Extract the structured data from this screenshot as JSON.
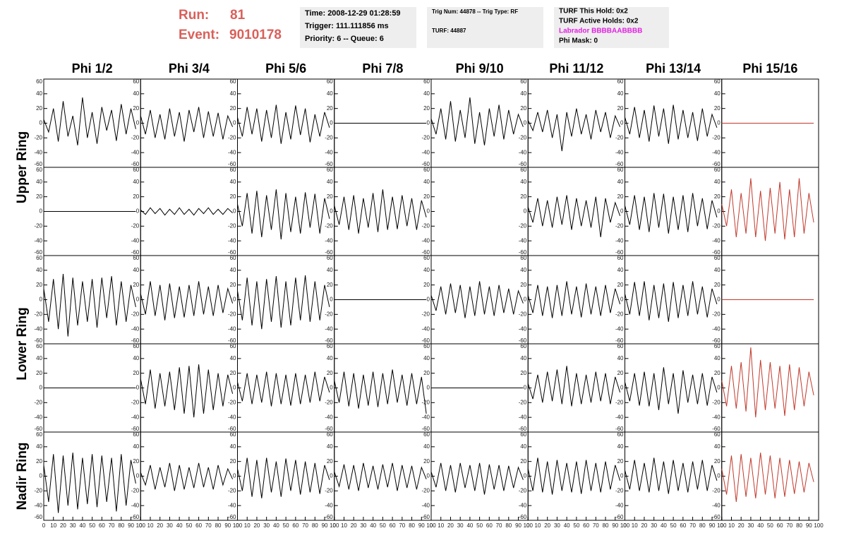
{
  "header": {
    "run_label": "Run:",
    "run": "81",
    "event_label": "Event:",
    "event": "9010178"
  },
  "info_boxes": [
    {
      "lines": [
        "Time: 2008-12-29 01:28:59",
        "Trigger: 111.111856 ms",
        "Priority: 6 -- Queue: 6"
      ]
    },
    {
      "lines": [
        "Trig Num: 44878 -- Trig Type: RF",
        "TURF: 44887"
      ]
    },
    {
      "lines": [
        "TURF This Hold: 0x2",
        "TURF Active Holds: 0x2",
        "Labrador BBBBAABBBB",
        "Phi Mask: 0"
      ]
    }
  ],
  "chart_data": {
    "type": "line",
    "columns": [
      "Phi 1/2",
      "Phi 3/4",
      "Phi 5/6",
      "Phi 7/8",
      "Phi 9/10",
      "Phi 11/12",
      "Phi 13/14",
      "Phi 15/16"
    ],
    "rings": [
      "Upper Ring",
      "Lower Ring",
      "Nadir Ring"
    ],
    "xlim": [
      0,
      100
    ],
    "xticks": [
      0,
      10,
      20,
      30,
      40,
      50,
      60,
      70,
      80,
      90,
      100
    ],
    "ylim": [
      -60,
      60
    ],
    "yticks": [
      -60,
      -40,
      -20,
      0,
      20,
      40,
      60
    ],
    "x": [
      0,
      5,
      10,
      15,
      20,
      25,
      30,
      35,
      40,
      45,
      50,
      55,
      60,
      65,
      70,
      75,
      80,
      85,
      90,
      95
    ],
    "panels": [
      [
        {
          "color": "#000000",
          "values": [
            5,
            -12,
            20,
            -25,
            30,
            -18,
            10,
            -30,
            35,
            -20,
            15,
            -28,
            22,
            -10,
            18,
            -24,
            26,
            -15,
            20,
            -8
          ]
        },
        {
          "color": "#000000",
          "values": [
            10,
            -15,
            18,
            -20,
            12,
            -22,
            20,
            -18,
            15,
            -25,
            18,
            -12,
            22,
            -20,
            16,
            -18,
            14,
            -22,
            10,
            -5
          ]
        },
        {
          "color": "#000000",
          "values": [
            8,
            -18,
            22,
            -15,
            20,
            -25,
            18,
            -20,
            25,
            -28,
            15,
            -22,
            24,
            -16,
            20,
            -26,
            12,
            -18,
            15,
            -6
          ]
        },
        {
          "color": "#000000",
          "values": [
            0,
            0,
            0,
            0,
            0,
            0,
            0,
            0,
            0,
            0,
            0,
            0,
            0,
            0,
            0,
            0,
            0,
            0,
            0,
            0
          ]
        },
        {
          "color": "#000000",
          "values": [
            6,
            -15,
            20,
            -22,
            30,
            -25,
            18,
            -20,
            35,
            -28,
            15,
            -30,
            20,
            -18,
            25,
            -22,
            18,
            -15,
            12,
            -5
          ]
        },
        {
          "color": "#000000",
          "values": [
            4,
            -10,
            15,
            -12,
            18,
            -20,
            12,
            -38,
            15,
            -18,
            20,
            -15,
            12,
            -22,
            18,
            -12,
            15,
            -20,
            10,
            -5
          ]
        },
        {
          "color": "#000000",
          "values": [
            8,
            -15,
            22,
            -20,
            18,
            -25,
            24,
            -18,
            20,
            -28,
            25,
            -22,
            18,
            -20,
            15,
            -24,
            20,
            -18,
            12,
            -6
          ]
        },
        {
          "color": "#c0392b",
          "values": [
            0,
            0,
            0,
            0,
            0,
            0,
            0,
            0,
            0,
            0,
            0,
            0,
            0,
            0,
            0,
            0,
            0,
            0,
            0,
            0
          ]
        }
      ],
      [
        {
          "color": "#000000",
          "values": [
            0,
            0,
            0,
            0,
            0,
            0,
            0,
            0,
            0,
            0,
            0,
            0,
            0,
            0,
            0,
            0,
            0,
            0,
            0,
            0
          ]
        },
        {
          "color": "#000000",
          "values": [
            2,
            -4,
            5,
            -3,
            4,
            -5,
            3,
            -4,
            5,
            -4,
            3,
            -5,
            4,
            -3,
            5,
            -4,
            3,
            -4,
            4,
            -2
          ]
        },
        {
          "color": "#000000",
          "values": [
            10,
            -20,
            25,
            -30,
            28,
            -35,
            22,
            -25,
            30,
            -38,
            25,
            -28,
            20,
            -30,
            26,
            -22,
            24,
            -30,
            18,
            -10
          ]
        },
        {
          "color": "#000000",
          "values": [
            8,
            -18,
            20,
            -25,
            22,
            -30,
            18,
            -22,
            25,
            -28,
            30,
            -25,
            20,
            -24,
            22,
            -20,
            18,
            -25,
            15,
            -8
          ]
        },
        null,
        {
          "color": "#000000",
          "values": [
            6,
            -15,
            18,
            -20,
            15,
            -22,
            20,
            -18,
            22,
            -25,
            18,
            -20,
            15,
            -22,
            20,
            -35,
            18,
            -15,
            12,
            -6
          ]
        },
        {
          "color": "#000000",
          "values": [
            8,
            -18,
            22,
            -25,
            20,
            -28,
            25,
            -22,
            24,
            -30,
            20,
            -25,
            22,
            -28,
            25,
            -20,
            18,
            -24,
            15,
            -8
          ]
        },
        {
          "color": "#c0392b",
          "values": [
            10,
            -20,
            30,
            -35,
            25,
            -30,
            45,
            -35,
            28,
            -40,
            32,
            -30,
            40,
            -38,
            30,
            -35,
            45,
            -30,
            25,
            -15
          ]
        }
      ],
      [
        {
          "color": "#000000",
          "values": [
            15,
            -30,
            28,
            -40,
            35,
            -50,
            30,
            -35,
            25,
            -30,
            28,
            -38,
            30,
            -25,
            32,
            -35,
            25,
            -30,
            20,
            -10
          ]
        },
        {
          "color": "#000000",
          "values": [
            8,
            -20,
            25,
            -22,
            20,
            -28,
            22,
            -25,
            18,
            -24,
            20,
            -22,
            25,
            -20,
            18,
            -22,
            20,
            -18,
            15,
            -5
          ]
        },
        {
          "color": "#000000",
          "values": [
            12,
            -28,
            30,
            -35,
            25,
            -40,
            28,
            -30,
            32,
            -38,
            25,
            -35,
            30,
            -28,
            33,
            -30,
            25,
            -28,
            20,
            -10
          ]
        },
        {
          "color": "#000000",
          "values": [
            0,
            0,
            0,
            0,
            0,
            0,
            0,
            0,
            0,
            0,
            0,
            0,
            0,
            0,
            0,
            0,
            0,
            0,
            0,
            0
          ]
        },
        {
          "color": "#000000",
          "values": [
            6,
            -15,
            18,
            -20,
            22,
            -18,
            20,
            -25,
            18,
            -22,
            25,
            -20,
            18,
            -22,
            20,
            -18,
            15,
            -20,
            12,
            -5
          ]
        },
        {
          "color": "#000000",
          "values": [
            6,
            -18,
            20,
            -22,
            18,
            -25,
            20,
            -22,
            25,
            -20,
            18,
            -24,
            22,
            -20,
            18,
            -22,
            20,
            -18,
            15,
            -6
          ]
        },
        {
          "color": "#000000",
          "values": [
            8,
            -20,
            24,
            -22,
            25,
            -28,
            20,
            -25,
            22,
            -30,
            24,
            -25,
            20,
            -22,
            25,
            -20,
            18,
            -24,
            15,
            -6
          ]
        },
        {
          "color": "#c0392b",
          "values": [
            0,
            0,
            0,
            0,
            0,
            0,
            0,
            0,
            0,
            0,
            0,
            0,
            0,
            0,
            0,
            0,
            0,
            0,
            0,
            0
          ]
        }
      ],
      [
        {
          "color": "#000000",
          "values": [
            0,
            0,
            0,
            0,
            0,
            0,
            0,
            0,
            0,
            0,
            0,
            0,
            0,
            0,
            0,
            0,
            0,
            0,
            0,
            0
          ]
        },
        {
          "color": "#000000",
          "values": [
            12,
            -22,
            25,
            -28,
            20,
            -25,
            22,
            -30,
            28,
            -35,
            30,
            -40,
            32,
            -35,
            25,
            -30,
            20,
            -25,
            18,
            -8
          ]
        },
        {
          "color": "#000000",
          "values": [
            8,
            -18,
            20,
            -22,
            18,
            -20,
            22,
            -25,
            20,
            -22,
            18,
            -24,
            20,
            -22,
            18,
            -20,
            22,
            -18,
            15,
            -6
          ]
        },
        {
          "color": "#000000",
          "values": [
            10,
            -20,
            22,
            -25,
            20,
            -28,
            18,
            -24,
            22,
            -26,
            20,
            -22,
            25,
            -20,
            18,
            -24,
            20,
            -22,
            15,
            -35
          ]
        },
        {
          "color": "#000000",
          "values": [
            0,
            0,
            0,
            0,
            0,
            0,
            0,
            0,
            0,
            0,
            0,
            0,
            0,
            0,
            0,
            0,
            0,
            0,
            0,
            0
          ]
        },
        {
          "color": "#000000",
          "values": [
            6,
            -15,
            18,
            -20,
            22,
            -18,
            25,
            -22,
            30,
            -25,
            20,
            -22,
            18,
            -20,
            22,
            -18,
            20,
            -22,
            15,
            -6
          ]
        },
        {
          "color": "#000000",
          "values": [
            8,
            -18,
            20,
            -24,
            22,
            -25,
            20,
            -30,
            28,
            -22,
            20,
            -35,
            24,
            -20,
            18,
            -22,
            20,
            -24,
            15,
            -6
          ]
        },
        {
          "color": "#c0392b",
          "values": [
            10,
            -25,
            30,
            -28,
            35,
            -32,
            55,
            -40,
            38,
            -30,
            35,
            -28,
            30,
            -38,
            32,
            -30,
            28,
            -25,
            22,
            -10
          ]
        }
      ],
      [
        {
          "color": "#000000",
          "values": [
            15,
            -35,
            30,
            -50,
            28,
            -40,
            32,
            -45,
            25,
            -38,
            30,
            -42,
            28,
            -35,
            25,
            -48,
            30,
            -40,
            22,
            -10
          ]
        },
        {
          "color": "#000000",
          "values": [
            5,
            -12,
            15,
            -18,
            12,
            -15,
            18,
            -20,
            15,
            -18,
            12,
            -16,
            18,
            -15,
            12,
            -18,
            15,
            -12,
            10,
            -4
          ]
        },
        {
          "color": "#000000",
          "values": [
            10,
            -20,
            25,
            -28,
            22,
            -30,
            25,
            -22,
            20,
            -28,
            24,
            -20,
            22,
            -25,
            20,
            -22,
            18,
            -24,
            15,
            -5
          ]
        },
        {
          "color": "#000000",
          "values": [
            6,
            -14,
            16,
            -18,
            15,
            -20,
            18,
            -16,
            14,
            -18,
            16,
            -15,
            18,
            -20,
            15,
            -16,
            14,
            -18,
            12,
            -4
          ]
        },
        {
          "color": "#000000",
          "values": [
            6,
            -15,
            18,
            -20,
            15,
            -22,
            18,
            -16,
            15,
            -20,
            18,
            -25,
            16,
            -18,
            15,
            -20,
            14,
            -16,
            12,
            -5
          ]
        },
        {
          "color": "#000000",
          "values": [
            10,
            -20,
            25,
            -22,
            20,
            -25,
            22,
            -20,
            18,
            -22,
            20,
            -24,
            22,
            -20,
            18,
            -22,
            20,
            -18,
            15,
            -6
          ]
        },
        {
          "color": "#000000",
          "values": [
            8,
            -18,
            22,
            -20,
            18,
            -22,
            25,
            -20,
            20,
            -24,
            22,
            -20,
            18,
            -22,
            20,
            -18,
            22,
            -20,
            15,
            -6
          ]
        },
        {
          "color": "#c0392b",
          "values": [
            10,
            -25,
            28,
            -35,
            30,
            -28,
            25,
            -30,
            32,
            -25,
            28,
            -30,
            25,
            -28,
            22,
            -24,
            20,
            -22,
            18,
            -8
          ]
        }
      ]
    ]
  }
}
